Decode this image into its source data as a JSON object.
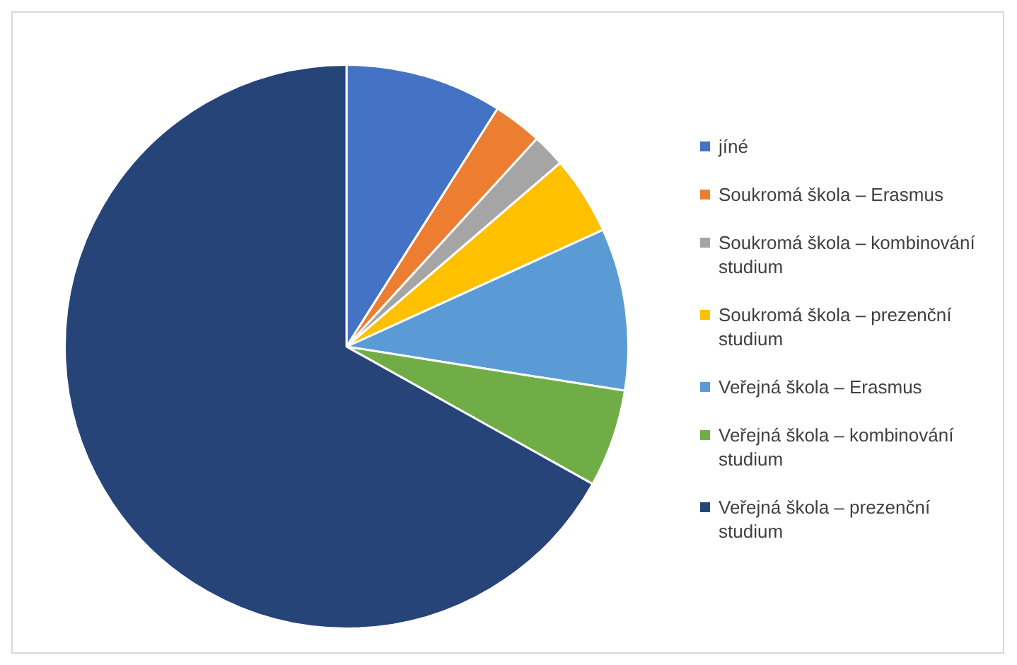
{
  "chart_data": {
    "type": "pie",
    "categories": [
      "jíné",
      "Soukromá škola – Erasmus",
      "Soukromá škola – kombinování studium",
      "Soukromá škola – prezenční studium",
      "Veřejná škola – Erasmus",
      "Veřejná škola – kombinování studium",
      "Veřejná škola – prezenční studium"
    ],
    "values": [
      9.0,
      2.8,
      1.9,
      4.5,
      9.3,
      5.6,
      66.9
    ],
    "colors": [
      "#4472c4",
      "#ed7d31",
      "#a5a5a5",
      "#ffc000",
      "#5b9bd5",
      "#70ad47",
      "#264478"
    ],
    "legend": "right"
  }
}
